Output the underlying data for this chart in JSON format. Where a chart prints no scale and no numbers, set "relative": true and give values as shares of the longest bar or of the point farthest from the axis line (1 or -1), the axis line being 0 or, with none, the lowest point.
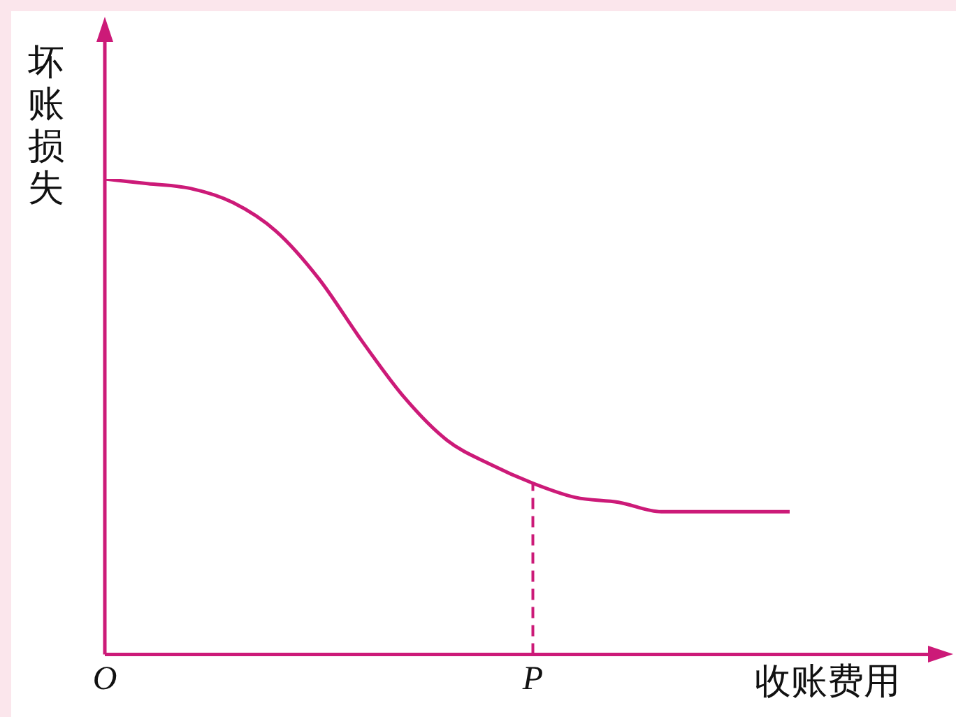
{
  "chart_data": {
    "type": "line",
    "xlabel": "收账费用",
    "ylabel": "坏账损失",
    "categories": [
      "O",
      null,
      null,
      null,
      null,
      null,
      null,
      null,
      null,
      null,
      "P",
      null,
      null,
      null,
      null,
      null,
      null
    ],
    "values": [
      1,
      0.99,
      0.98,
      0.95,
      0.89,
      0.79,
      0.66,
      0.54,
      0.45,
      0.4,
      0.36,
      0.33,
      0.32,
      0.3,
      0.3,
      0.3,
      0.3
    ],
    "color": "#cc1a78",
    "relative": true,
    "marker": "none",
    "line_style": "solid",
    "grid": false,
    "legend": false,
    "ref_lines": [
      {
        "axis": "x",
        "value": "P",
        "line_style": "dashed",
        "color": "#cc1a78"
      }
    ]
  }
}
